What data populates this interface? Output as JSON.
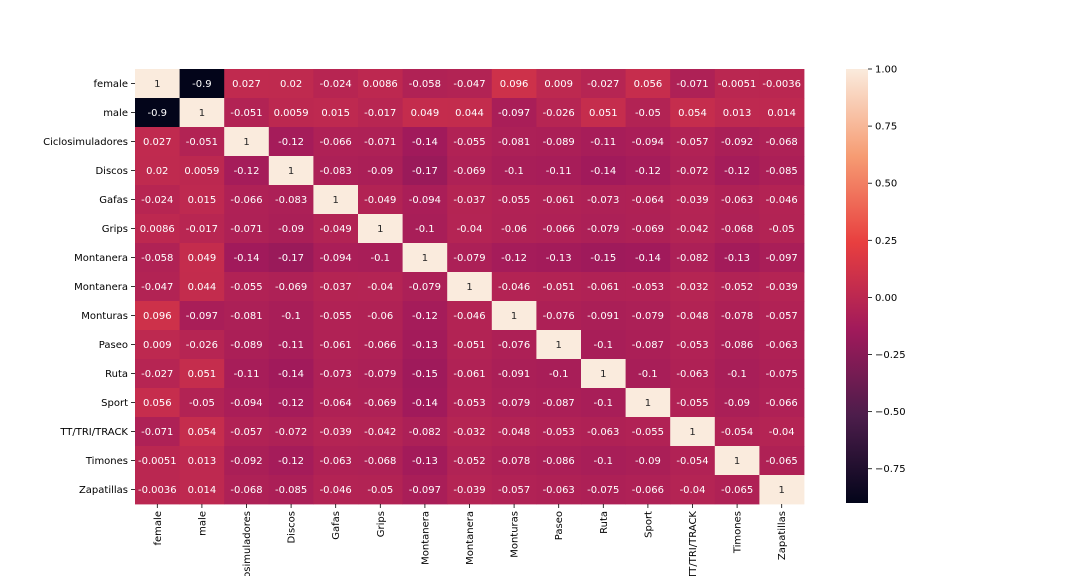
{
  "chart_data": {
    "type": "heatmap",
    "title": "",
    "xlabel": "",
    "ylabel": "",
    "x_labels": [
      "female",
      "male",
      "Ciclosimuladores",
      "Discos",
      "Gafas",
      "Grips",
      "Montanera",
      "Montanera ",
      "Monturas",
      "Paseo",
      "Ruta",
      "Sport",
      "TT/TRI/TRACK",
      "Timones",
      "Zapatillas"
    ],
    "y_labels": [
      "female",
      "male",
      "Ciclosimuladores",
      "Discos",
      "Gafas",
      "Grips",
      "Montanera",
      "Montanera ",
      "Monturas",
      "Paseo",
      "Ruta",
      "Sport",
      "TT/TRI/TRACK",
      "Timones",
      "Zapatillas"
    ],
    "values": [
      [
        1,
        -0.9,
        0.027,
        0.02,
        -0.024,
        0.0086,
        -0.058,
        -0.047,
        0.096,
        0.009,
        -0.027,
        0.056,
        -0.071,
        -0.0051,
        -0.0036
      ],
      [
        -0.9,
        1,
        -0.051,
        0.0059,
        0.015,
        -0.017,
        0.049,
        0.044,
        -0.097,
        -0.026,
        0.051,
        -0.05,
        0.054,
        0.013,
        0.014
      ],
      [
        0.027,
        -0.051,
        1,
        -0.12,
        -0.066,
        -0.071,
        -0.14,
        -0.055,
        -0.081,
        -0.089,
        -0.11,
        -0.094,
        -0.057,
        -0.092,
        -0.068
      ],
      [
        0.02,
        0.0059,
        -0.12,
        1,
        -0.083,
        -0.09,
        -0.17,
        -0.069,
        -0.1,
        -0.11,
        -0.14,
        -0.12,
        -0.072,
        -0.12,
        -0.085
      ],
      [
        -0.024,
        0.015,
        -0.066,
        -0.083,
        1,
        -0.049,
        -0.094,
        -0.037,
        -0.055,
        -0.061,
        -0.073,
        -0.064,
        -0.039,
        -0.063,
        -0.046
      ],
      [
        0.0086,
        -0.017,
        -0.071,
        -0.09,
        -0.049,
        1,
        -0.1,
        -0.04,
        -0.06,
        -0.066,
        -0.079,
        -0.069,
        -0.042,
        -0.068,
        -0.05
      ],
      [
        -0.058,
        0.049,
        -0.14,
        -0.17,
        -0.094,
        -0.1,
        1,
        -0.079,
        -0.12,
        -0.13,
        -0.15,
        -0.14,
        -0.082,
        -0.13,
        -0.097
      ],
      [
        -0.047,
        0.044,
        -0.055,
        -0.069,
        -0.037,
        -0.04,
        -0.079,
        1,
        -0.046,
        -0.051,
        -0.061,
        -0.053,
        -0.032,
        -0.052,
        -0.039
      ],
      [
        0.096,
        -0.097,
        -0.081,
        -0.1,
        -0.055,
        -0.06,
        -0.12,
        -0.046,
        1,
        -0.076,
        -0.091,
        -0.079,
        -0.048,
        -0.078,
        -0.057
      ],
      [
        0.009,
        -0.026,
        -0.089,
        -0.11,
        -0.061,
        -0.066,
        -0.13,
        -0.051,
        -0.076,
        1,
        -0.1,
        -0.087,
        -0.053,
        -0.086,
        -0.063
      ],
      [
        -0.027,
        0.051,
        -0.11,
        -0.14,
        -0.073,
        -0.079,
        -0.15,
        -0.061,
        -0.091,
        -0.1,
        1,
        -0.1,
        -0.063,
        -0.1,
        -0.075
      ],
      [
        0.056,
        -0.05,
        -0.094,
        -0.12,
        -0.064,
        -0.069,
        -0.14,
        -0.053,
        -0.079,
        -0.087,
        -0.1,
        1,
        -0.055,
        -0.09,
        -0.066
      ],
      [
        -0.071,
        0.054,
        -0.057,
        -0.072,
        -0.039,
        -0.042,
        -0.082,
        -0.032,
        -0.048,
        -0.053,
        -0.063,
        -0.055,
        1,
        -0.054,
        -0.04
      ],
      [
        -0.0051,
        0.013,
        -0.092,
        -0.12,
        -0.063,
        -0.068,
        -0.13,
        -0.052,
        -0.078,
        -0.086,
        -0.1,
        -0.09,
        -0.054,
        1,
        -0.065
      ],
      [
        -0.0036,
        0.014,
        -0.068,
        -0.085,
        -0.046,
        -0.05,
        -0.097,
        -0.039,
        -0.057,
        -0.063,
        -0.075,
        -0.066,
        -0.04,
        -0.065,
        1
      ]
    ],
    "annotations": true,
    "colorbar": {
      "range": [
        -0.9,
        1.0
      ],
      "ticks": [
        1.0,
        0.75,
        0.5,
        0.25,
        0.0,
        -0.25,
        -0.5,
        -0.75
      ],
      "tick_labels": [
        "1.00",
        "0.75",
        "0.50",
        "0.25",
        "0.00",
        "−0.25",
        "−0.50",
        "−0.75"
      ]
    },
    "colormap": "rocket",
    "colormap_stops": [
      "#03051a",
      "#4c1d4b",
      "#a11a5b",
      "#e83f3f",
      "#f69c73",
      "#faebdd"
    ],
    "grid": false,
    "legend": "none"
  }
}
